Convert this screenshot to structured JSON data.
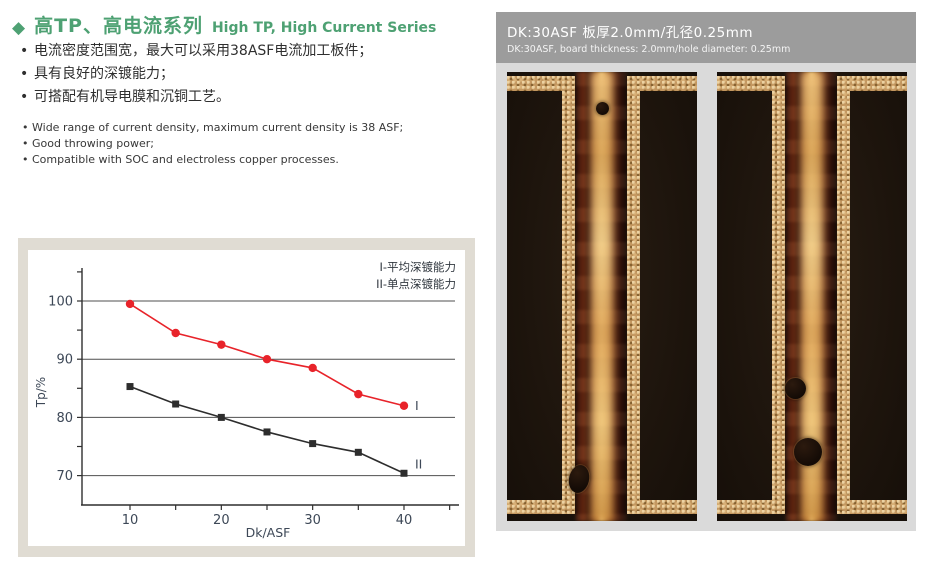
{
  "header": {
    "diamond_icon": "◆",
    "title_cn": "高TP、高电流系列",
    "title_en": "High TP, High Current Series"
  },
  "bullets_cn": [
    "电流密度范围宽，最大可以采用38ASF电流加工板件；",
    "具有良好的深镀能力；",
    "可搭配有机导电膜和沉铜工艺。"
  ],
  "bullets_en": [
    "Wide range of current density, maximum current density is 38 ASF;",
    "Good throwing power;",
    "Compatible with SOC and electroless copper processes."
  ],
  "bullet_glyph": "•",
  "chart_data": {
    "type": "line",
    "title": "",
    "xlabel": "Dk/ASF",
    "ylabel": "Tp/%",
    "x": [
      10,
      15,
      20,
      25,
      30,
      35,
      40
    ],
    "xticks": [
      10,
      20,
      30,
      40
    ],
    "yticks": [
      70,
      80,
      90,
      100
    ],
    "xlim": [
      5,
      47
    ],
    "ylim": [
      65,
      105
    ],
    "grid": "horizontal lines at yticks",
    "legend_position": "top-right inside plot",
    "series": [
      {
        "name": "I-平均深镀能力",
        "label": "I",
        "marker": "circle",
        "color": "#e8232a",
        "values": [
          99.5,
          94.5,
          92.5,
          90,
          88.5,
          84,
          82
        ]
      },
      {
        "name": "II-单点深镀能力",
        "label": "II",
        "marker": "square",
        "color": "#2d2d2d",
        "values": [
          85.3,
          82.3,
          80,
          77.5,
          75.5,
          74,
          70.4
        ]
      }
    ]
  },
  "right_panel": {
    "header_line1": "DK:30ASF  板厚2.0mm/孔径0.25mm",
    "header_line2": "DK:30ASF, board thickness: 2.0mm/hole diameter: 0.25mm",
    "photo_1": "plated through-hole cross-section micrograph (left)",
    "photo_2": "plated through-hole cross-section micrograph (right)"
  },
  "colors": {
    "accent_green": "#4ea173",
    "chart_panel_bg": "#e0dcd3",
    "right_panel_bg": "#dadada",
    "right_header_bg": "#9c9c9c",
    "axis_text": "#3d4857",
    "series_1_red": "#e8232a",
    "series_2_black": "#2d2d2d"
  }
}
